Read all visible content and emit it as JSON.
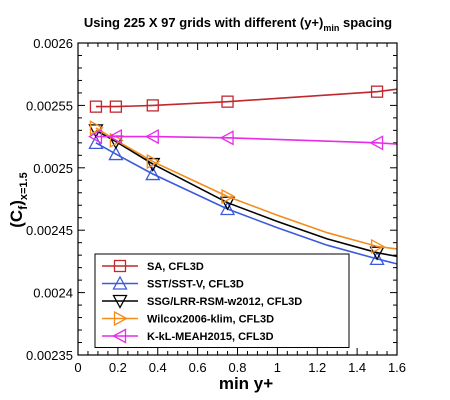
{
  "chart_data": {
    "type": "line",
    "title_main": "Using 225 X 97 grids with different (y+)",
    "title_sub": "min",
    "title_tail": " spacing",
    "xlabel": "min y+",
    "ylabel_main": "(C",
    "ylabel_sub1": "f",
    "ylabel_close": ")",
    "ylabel_sub2": "x=1.5",
    "xlim": [
      0,
      1.6
    ],
    "ylim": [
      0.00235,
      0.0026
    ],
    "xticks": [
      "0",
      "0.2",
      "0.4",
      "0.6",
      "0.8",
      "1",
      "1.2",
      "1.4",
      "1.6"
    ],
    "yticks": [
      "0.00235",
      "0.0024",
      "0.00245",
      "0.0025",
      "0.00255",
      "0.0026"
    ],
    "grid": false,
    "legend_position": "bottom-left",
    "series": [
      {
        "name": "SA, CFL3D",
        "color": "#c0282d",
        "marker": "square",
        "line_x": [
          0.09,
          0.19,
          0.375,
          0.75,
          1.5,
          1.6
        ],
        "line_y": [
          0.002549,
          0.002549,
          0.00255,
          0.002553,
          0.002561,
          0.002563
        ],
        "marker_x": [
          0.09,
          0.19,
          0.375,
          0.75,
          1.5
        ],
        "marker_y": [
          0.002549,
          0.002549,
          0.00255,
          0.002553,
          0.002561
        ]
      },
      {
        "name": "SST/SST-V, CFL3D",
        "color": "#3b5bdb",
        "marker": "triangle-up",
        "line_x": [
          0.09,
          0.19,
          0.375,
          0.75,
          1.0,
          1.25,
          1.5,
          1.6
        ],
        "line_y": [
          0.00252,
          0.002511,
          0.002495,
          0.002467,
          0.002452,
          0.002438,
          0.002427,
          0.002423
        ],
        "marker_x": [
          0.09,
          0.19,
          0.375,
          0.75,
          1.5
        ],
        "marker_y": [
          0.00252,
          0.002511,
          0.002495,
          0.002467,
          0.002427
        ]
      },
      {
        "name": "SSG/LRR-RSM-w2012, CFL3D",
        "color": "#000000",
        "marker": "triangle-down",
        "line_x": [
          0.09,
          0.19,
          0.375,
          0.75,
          1.0,
          1.25,
          1.5,
          1.6
        ],
        "line_y": [
          0.00253,
          0.002521,
          0.002503,
          0.002472,
          0.002457,
          0.002443,
          0.002432,
          0.002429
        ],
        "marker_x": [
          0.09,
          0.19,
          0.375,
          0.75,
          1.5
        ],
        "marker_y": [
          0.00253,
          0.002521,
          0.002503,
          0.002472,
          0.002432
        ]
      },
      {
        "name": "Wilcox2006-klim, CFL3D",
        "color": "#f28c1c",
        "marker": "triangle-right",
        "line_x": [
          0.09,
          0.19,
          0.375,
          0.75,
          1.0,
          1.25,
          1.5,
          1.6
        ],
        "line_y": [
          0.002532,
          0.002522,
          0.002505,
          0.002477,
          0.002462,
          0.002448,
          0.002437,
          0.002435
        ],
        "marker_x": [
          0.09,
          0.19,
          0.375,
          0.75,
          1.5
        ],
        "marker_y": [
          0.002532,
          0.002522,
          0.002505,
          0.002477,
          0.002437
        ]
      },
      {
        "name": "K-kL-MEAH2015, CFL3D",
        "color": "#e62ee6",
        "marker": "triangle-left",
        "line_x": [
          0.09,
          0.19,
          0.375,
          0.75,
          1.5,
          1.6
        ],
        "line_y": [
          0.002525,
          0.002525,
          0.002525,
          0.002524,
          0.00252,
          0.002519
        ],
        "marker_x": [
          0.09,
          0.19,
          0.375,
          0.75,
          1.5
        ],
        "marker_y": [
          0.002525,
          0.002525,
          0.002525,
          0.002524,
          0.00252
        ]
      }
    ]
  }
}
